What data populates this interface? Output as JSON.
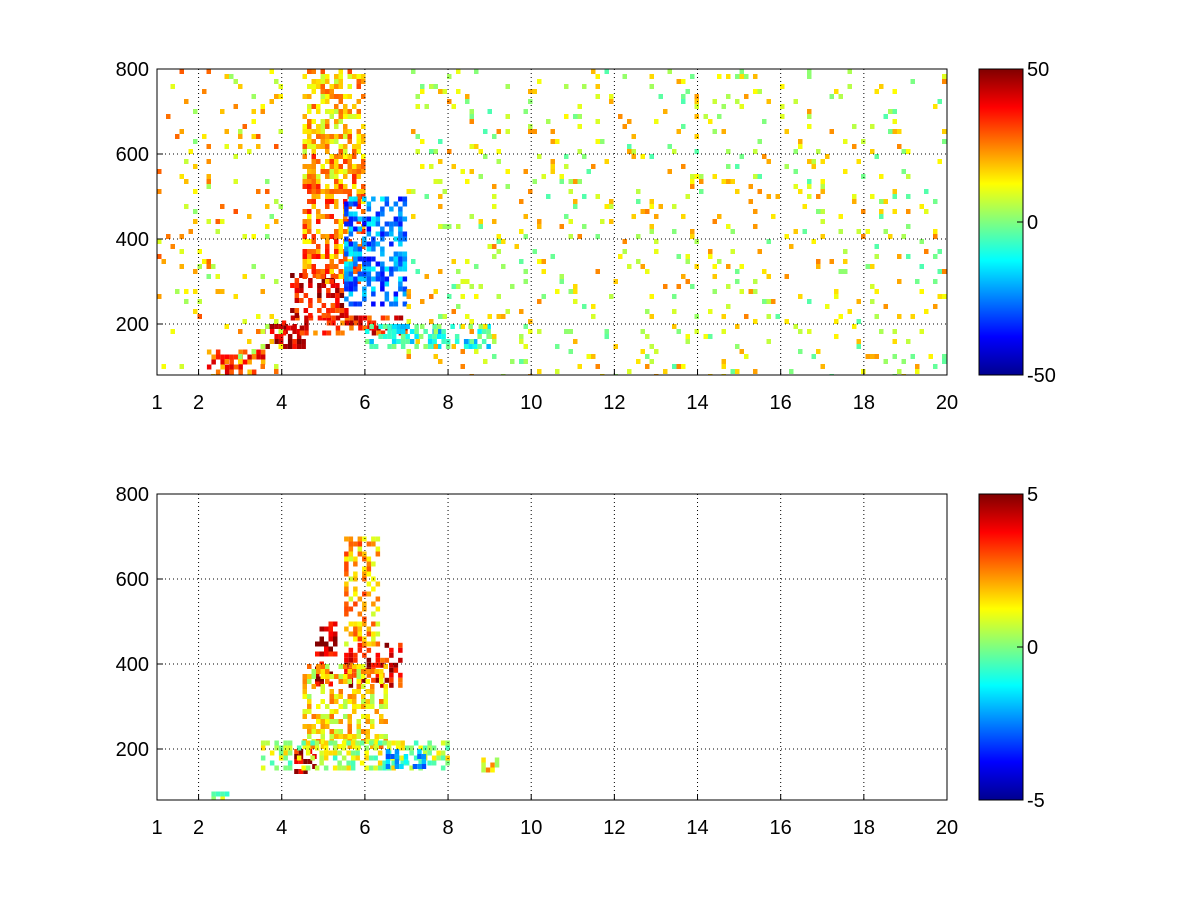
{
  "chart_data": [
    {
      "type": "heatmap",
      "title": "",
      "xlabel": "",
      "ylabel": "",
      "xlim": [
        1,
        20
      ],
      "ylim": [
        80,
        800
      ],
      "x_ticks": [
        1,
        2,
        4,
        6,
        8,
        10,
        12,
        14,
        16,
        18,
        20
      ],
      "x_tick_labels": [
        "1",
        "2",
        "4",
        "6",
        "8",
        "10",
        "12",
        "14",
        "16",
        "18",
        "20"
      ],
      "y_ticks": [
        200,
        400,
        600,
        800
      ],
      "y_tick_labels": [
        "200",
        "400",
        "600",
        "800"
      ],
      "grid": true,
      "colormap": "jet",
      "clim": [
        -50,
        50
      ],
      "colorbar_ticks": [
        -50,
        0,
        50
      ],
      "colorbar_tick_labels": [
        "-50",
        "0",
        "50"
      ],
      "features": [
        {
          "x": [
            3.5,
            4.5
          ],
          "y": [
            150,
            200
          ],
          "value": 45
        },
        {
          "x": [
            4.0,
            7.0
          ],
          "y": [
            180,
            220
          ],
          "value": 35
        },
        {
          "x": [
            4.2,
            5.5
          ],
          "y": [
            220,
            320
          ],
          "value": 40
        },
        {
          "x": [
            4.5,
            6.0
          ],
          "y": [
            300,
            600
          ],
          "value": 25
        },
        {
          "x": [
            4.5,
            6.0
          ],
          "y": [
            550,
            800
          ],
          "value": 18
        },
        {
          "x": [
            5.5,
            7.0
          ],
          "y": [
            250,
            500
          ],
          "value": -25
        },
        {
          "x": [
            6.0,
            9.0
          ],
          "y": [
            150,
            200
          ],
          "value": -10
        },
        {
          "x": [
            2.2,
            3.5
          ],
          "y": [
            80,
            140
          ],
          "value": 30
        },
        {
          "x": [
            1.0,
            4.0
          ],
          "y": [
            80,
            800
          ],
          "value": 5
        },
        {
          "x": [
            7.0,
            20.0
          ],
          "y": [
            80,
            800
          ],
          "value": 0
        }
      ]
    },
    {
      "type": "heatmap",
      "title": "",
      "xlabel": "",
      "ylabel": "",
      "xlim": [
        1,
        20
      ],
      "ylim": [
        80,
        800
      ],
      "x_ticks": [
        1,
        2,
        4,
        6,
        8,
        10,
        12,
        14,
        16,
        18,
        20
      ],
      "x_tick_labels": [
        "1",
        "2",
        "4",
        "6",
        "8",
        "10",
        "12",
        "14",
        "16",
        "18",
        "20"
      ],
      "y_ticks": [
        200,
        400,
        600,
        800
      ],
      "y_tick_labels": [
        "200",
        "400",
        "600",
        "800"
      ],
      "grid": true,
      "colormap": "jet",
      "clim": [
        -5,
        5
      ],
      "colorbar_ticks": [
        -5,
        0,
        5
      ],
      "colorbar_tick_labels": [
        "-5",
        "0",
        "5"
      ],
      "features": [
        {
          "x": [
            4.8,
            5.3
          ],
          "y": [
            350,
            500
          ],
          "value": 4.5
        },
        {
          "x": [
            5.5,
            6.8
          ],
          "y": [
            350,
            450
          ],
          "value": 3.8
        },
        {
          "x": [
            5.5,
            6.3
          ],
          "y": [
            450,
            700
          ],
          "value": 2.0
        },
        {
          "x": [
            4.3,
            4.8
          ],
          "y": [
            150,
            200
          ],
          "value": 4.0
        },
        {
          "x": [
            4.5,
            6.5
          ],
          "y": [
            200,
            400
          ],
          "value": 1.5
        },
        {
          "x": [
            3.5,
            8.0
          ],
          "y": [
            150,
            220
          ],
          "value": 0.5
        },
        {
          "x": [
            6.5,
            7.5
          ],
          "y": [
            160,
            200
          ],
          "value": -2.0
        },
        {
          "x": [
            2.2,
            2.8
          ],
          "y": [
            80,
            100
          ],
          "value": 0.0
        },
        {
          "x": [
            8.8,
            9.2
          ],
          "y": [
            150,
            180
          ],
          "value": 1.5
        }
      ]
    }
  ]
}
